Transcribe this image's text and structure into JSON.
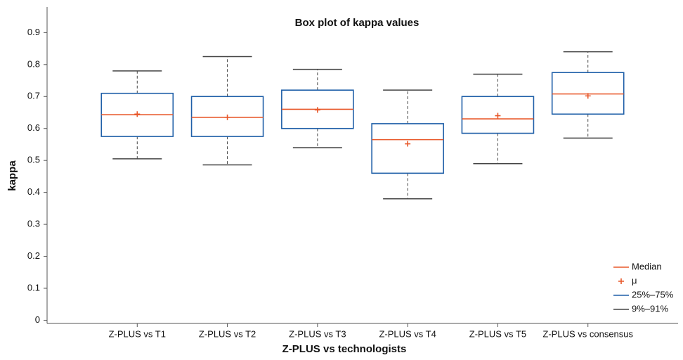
{
  "chart_data": {
    "type": "box",
    "title": "Box plot of kappa values",
    "x_label": "Z-PLUS vs technologists",
    "y_label": "kappa",
    "categories": [
      "Z-PLUS vs T1",
      "Z-PLUS vs T2",
      "Z-PLUS vs T3",
      "Z-PLUS vs T4",
      "Z-PLUS vs T5",
      "Z-PLUS vs consensus"
    ],
    "whisker_low": [
      0.505,
      0.486,
      0.54,
      0.38,
      0.49,
      0.57
    ],
    "q1": [
      0.575,
      0.575,
      0.6,
      0.46,
      0.585,
      0.645
    ],
    "median": [
      0.643,
      0.635,
      0.66,
      0.565,
      0.63,
      0.708
    ],
    "q3": [
      0.71,
      0.7,
      0.72,
      0.615,
      0.7,
      0.775
    ],
    "whisker_high": [
      0.78,
      0.825,
      0.785,
      0.72,
      0.77,
      0.84
    ],
    "mean": [
      0.645,
      0.635,
      0.658,
      0.552,
      0.64,
      0.702
    ],
    "ylim": [
      -0.01,
      0.98
    ],
    "yticks": [
      0,
      0.1,
      0.2,
      0.3,
      0.4,
      0.5,
      0.6,
      0.7,
      0.8,
      0.9
    ],
    "box_color": "#1f5fa8",
    "median_color": "#e8582a",
    "whisker_color": "#444444",
    "legend": {
      "position": "lower right",
      "labels": [
        "Median",
        "μ",
        "25%–75%",
        "9%–91%"
      ]
    }
  }
}
